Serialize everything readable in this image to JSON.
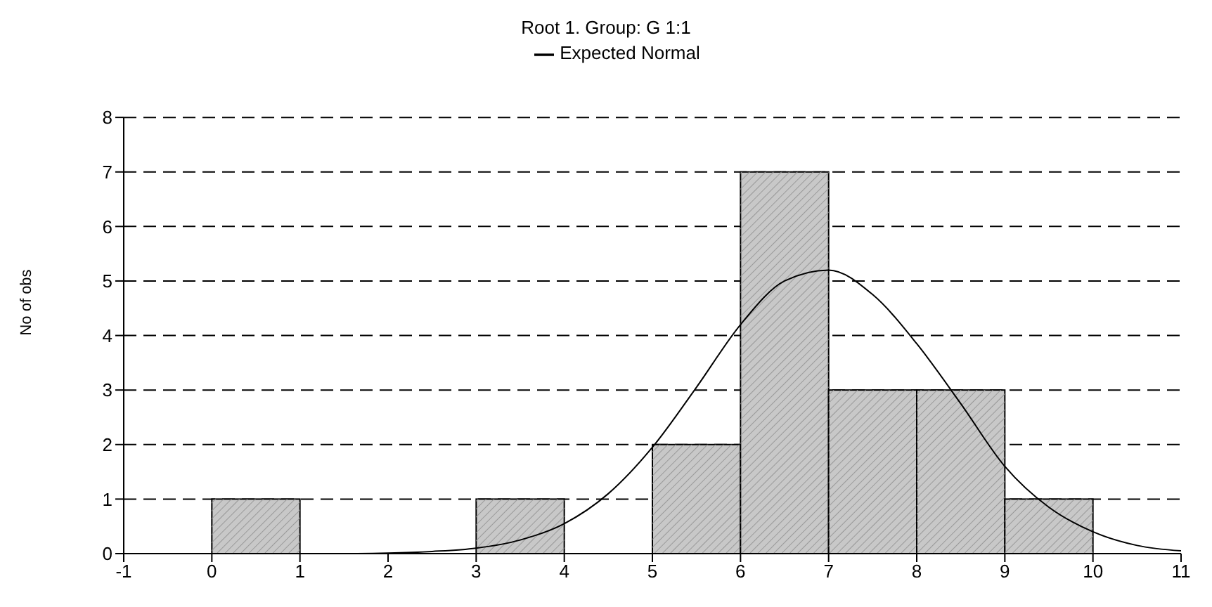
{
  "chart_data": {
    "type": "histogram",
    "title": "Root  1. Group: G  1:1",
    "ylabel": "No of obs",
    "bins": [
      0,
      1,
      2,
      3,
      4,
      5,
      6,
      7,
      8,
      9,
      10
    ],
    "values": [
      1,
      0,
      0,
      1,
      0,
      2,
      7,
      3,
      3,
      1
    ],
    "color": "#c8c8c8",
    "series": [
      {
        "type": "line",
        "name": "Expected Normal",
        "color": "#000000",
        "x": [
          -1,
          -0.5,
          0,
          0.5,
          1,
          1.5,
          2,
          2.5,
          3,
          3.5,
          4,
          4.5,
          5,
          5.5,
          6,
          6.5,
          7,
          7.5,
          8,
          8.5,
          9,
          9.5,
          10,
          10.5,
          11
        ],
        "values": [
          0,
          0,
          0,
          0,
          0,
          0,
          0.01,
          0.04,
          0.1,
          0.25,
          0.55,
          1.1,
          1.95,
          3.05,
          4.2,
          5,
          5.2,
          4.75,
          3.85,
          2.75,
          1.6,
          0.85,
          0.4,
          0.15,
          0.05
        ]
      }
    ],
    "xlim": [
      -1,
      11
    ],
    "xticks": [
      -1,
      0,
      1,
      2,
      3,
      4,
      5,
      6,
      7,
      8,
      9,
      10,
      11
    ],
    "ylim": [
      0,
      8
    ],
    "yticks": [
      0,
      1,
      2,
      3,
      4,
      5,
      6,
      7,
      8
    ],
    "grid": "y",
    "legend": "top",
    "line_style": "solid",
    "marker": "none"
  }
}
